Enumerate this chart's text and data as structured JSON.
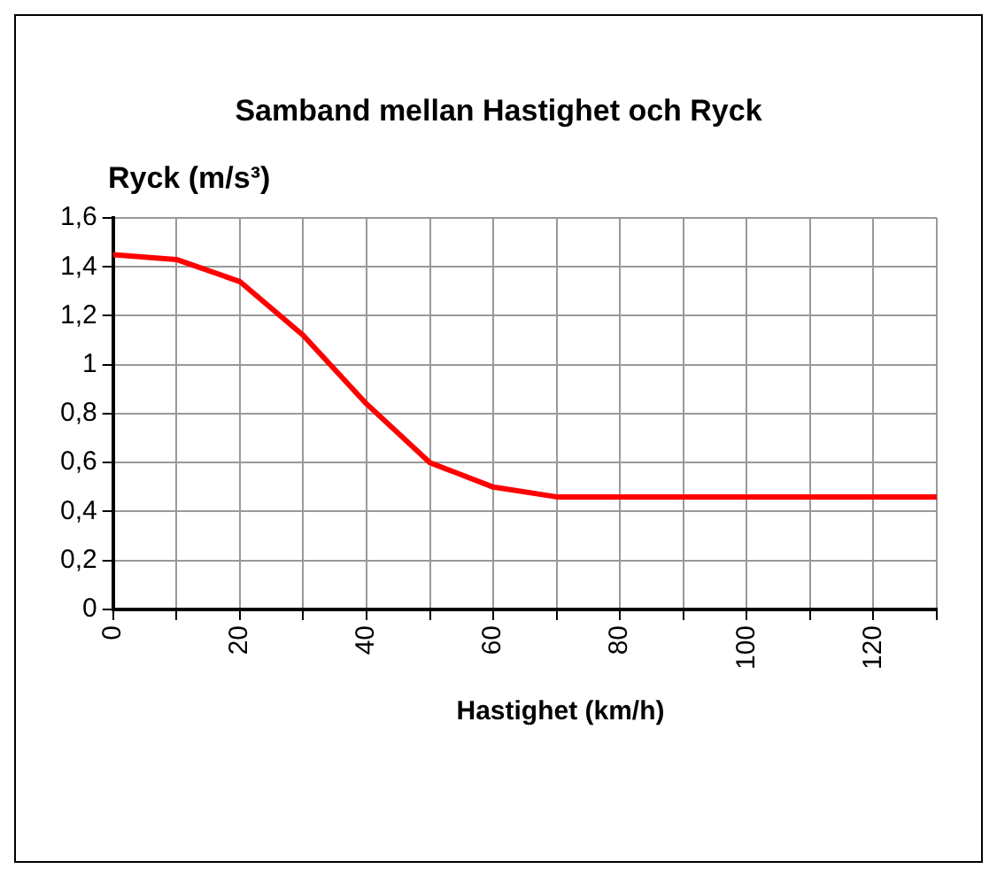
{
  "chart_data": {
    "type": "line",
    "title": "Samband mellan Hastighet och Ryck",
    "ylabel": "Ryck (m/s³)",
    "xlabel": "Hastighet (km/h)",
    "x": [
      0,
      10,
      20,
      30,
      40,
      50,
      60,
      70,
      80,
      90,
      100,
      110,
      120,
      130
    ],
    "series": [
      {
        "color": "#ff0000",
        "values": [
          1.45,
          1.43,
          1.34,
          1.12,
          0.84,
          0.6,
          0.5,
          0.46,
          0.46,
          0.46,
          0.46,
          0.46,
          0.46,
          0.46
        ]
      }
    ],
    "xlim": [
      0,
      130
    ],
    "xticks": [
      0,
      {
        "value": 10,
        "label": null
      },
      20,
      {
        "value": 30,
        "label": null
      },
      40,
      {
        "value": 50,
        "label": null
      },
      60,
      {
        "value": 70,
        "label": null
      },
      80,
      {
        "value": 90,
        "label": null
      },
      100,
      {
        "value": 110,
        "label": null
      },
      120,
      {
        "value": 130,
        "label": null
      }
    ],
    "ylim": [
      0,
      1.6
    ],
    "yticks": [
      {
        "value": 0,
        "label": "0"
      },
      {
        "value": 0.2,
        "label": "0,2"
      },
      {
        "value": 0.4,
        "label": "0,4"
      },
      {
        "value": 0.6,
        "label": "0,6"
      },
      {
        "value": 0.8,
        "label": "0,8"
      },
      {
        "value": 1,
        "label": "1"
      },
      {
        "value": 1.2,
        "label": "1,2"
      },
      {
        "value": 1.4,
        "label": "1,4"
      },
      {
        "value": 1.6,
        "label": "1,6"
      }
    ],
    "grid": true,
    "legend": false,
    "marker": "none",
    "line_style": "solid"
  }
}
